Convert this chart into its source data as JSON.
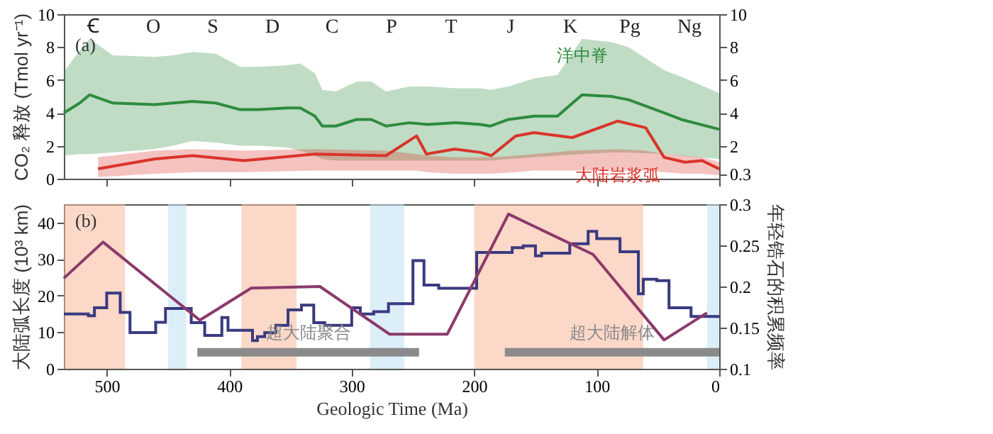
{
  "chart_data": [
    {
      "type": "line",
      "ylabel": "CO₂ 释放 (Tmol yr⁻¹)",
      "title": "(a)",
      "xlim": [
        535,
        0
      ],
      "xticks": [
        500,
        400,
        300,
        200,
        100,
        0
      ],
      "ylim": [
        0,
        10
      ],
      "yticks": [
        0,
        2,
        4,
        6,
        8,
        10
      ],
      "y2lim": [
        0,
        10
      ],
      "y2ticks": [
        0.3,
        2,
        4,
        6,
        8,
        10
      ],
      "tick_labels": "y",
      "grid": false,
      "series": [
        {
          "name": "洋中脊",
          "color": "#2e8b3e",
          "x": [
            535,
            522,
            514,
            495,
            461,
            446,
            430,
            411,
            391,
            376,
            353,
            342,
            330,
            324,
            313,
            296,
            284,
            272,
            253,
            238,
            215,
            195,
            187,
            172,
            151,
            132,
            112,
            88,
            74,
            45,
            31,
            0
          ],
          "values": [
            4.0,
            4.6,
            5.1,
            4.6,
            4.5,
            4.6,
            4.7,
            4.6,
            4.2,
            4.2,
            4.3,
            4.3,
            3.8,
            3.2,
            3.2,
            3.6,
            3.6,
            3.2,
            3.4,
            3.3,
            3.4,
            3.3,
            3.2,
            3.6,
            3.8,
            3.8,
            5.1,
            5.0,
            4.8,
            4.0,
            3.6,
            3.0
          ],
          "upper": [
            6.5,
            7.8,
            8.5,
            7.5,
            7.4,
            7.5,
            7.7,
            7.6,
            6.8,
            6.8,
            6.9,
            7.0,
            6.4,
            5.4,
            5.3,
            5.9,
            5.9,
            5.3,
            5.6,
            5.6,
            5.5,
            5.5,
            5.4,
            5.6,
            6.1,
            6.3,
            8.5,
            8.3,
            8.0,
            6.6,
            6.2,
            5.2
          ],
          "lower": [
            1.4,
            1.5,
            1.5,
            1.6,
            1.8,
            2.0,
            2.3,
            2.2,
            2.0,
            2.0,
            1.9,
            1.7,
            1.4,
            1.2,
            1.1,
            1.1,
            1.1,
            1.1,
            1.1,
            1.1,
            1.1,
            1.1,
            1.1,
            1.2,
            1.3,
            1.4,
            1.5,
            1.6,
            1.6,
            1.5,
            1.4,
            1.2
          ]
        },
        {
          "name": "大陆岩浆弧",
          "color": "#d9342b",
          "x": [
            507,
            461,
            430,
            388,
            330,
            272,
            247,
            239,
            216,
            195,
            186,
            166,
            151,
            120,
            83,
            60,
            45,
            28,
            14,
            0
          ],
          "values": [
            0.6,
            1.2,
            1.4,
            1.1,
            1.5,
            1.4,
            2.6,
            1.5,
            1.8,
            1.6,
            1.4,
            2.6,
            2.8,
            2.5,
            3.5,
            3.1,
            1.3,
            1.0,
            1.1,
            0.6
          ],
          "upper": [
            1.3,
            1.7,
            1.8,
            1.7,
            1.8,
            1.7,
            1.5,
            1.4,
            1.3,
            1.3,
            1.3,
            1.4,
            1.5,
            1.7,
            1.8,
            1.7,
            1.5,
            1.4,
            1.3,
            1.0
          ],
          "lower": [
            0.1,
            0.3,
            0.4,
            0.4,
            0.5,
            0.5,
            0.5,
            0.4,
            0.3,
            0.3,
            0.3,
            0.4,
            0.5,
            0.5,
            0.5,
            0.5,
            0.4,
            0.3,
            0.3,
            0.2
          ]
        }
      ],
      "annotations": [
        "Ꞓ",
        "O",
        "S",
        "D",
        "C",
        "P",
        "T",
        "J",
        "K",
        "Pg",
        "Ng"
      ]
    },
    {
      "type": "step",
      "xlabel": "Geologic Time (Ma)",
      "ylabel": "大陆弧长度 (10³ km)",
      "y2label": "年轻锆石的积累频率",
      "xlim": [
        535,
        0
      ],
      "xticks": [
        500,
        400,
        300,
        200,
        100,
        0
      ],
      "ylim": [
        0,
        45
      ],
      "yticks": [
        0,
        10,
        20,
        30,
        40
      ],
      "y2lim": [
        0.1,
        0.3
      ],
      "y2ticks": [
        0.1,
        0.15,
        0.2,
        0.25,
        0.3
      ],
      "grid": false,
      "bands": [
        {
          "axis": "x",
          "from": 535,
          "to": 485,
          "color": "#f9b89a"
        },
        {
          "axis": "x",
          "from": 450,
          "to": 435,
          "color": "#bfe0f2"
        },
        {
          "axis": "x",
          "from": 390,
          "to": 345,
          "color": "#f9b89a"
        },
        {
          "axis": "x",
          "from": 285,
          "to": 257,
          "color": "#bfe0f2"
        },
        {
          "axis": "x",
          "from": 200,
          "to": 62,
          "color": "#f9b89a"
        },
        {
          "axis": "x",
          "from": 10,
          "to": 0,
          "color": "#bfe0f2"
        }
      ],
      "series": [
        {
          "color": "#3a3a80",
          "type": "step",
          "x": [
            535,
            515,
            510,
            500,
            489,
            481,
            460,
            452,
            431,
            420,
            406,
            401,
            381,
            377,
            371,
            362,
            352,
            341,
            331,
            322,
            300,
            293,
            282,
            270,
            250,
            241,
            229,
            198,
            169,
            160,
            150,
            145,
            122,
            107,
            100,
            81,
            66,
            62,
            51,
            41,
            23,
            0
          ],
          "values": [
            15.0,
            14.5,
            16.7,
            20.7,
            15.4,
            9.9,
            12.7,
            16.5,
            12.6,
            9.1,
            14.0,
            10.5,
            7.7,
            8.8,
            9.9,
            11.9,
            16.1,
            17.4,
            12.6,
            11.9,
            16.7,
            15.0,
            15.6,
            17.8,
            29.6,
            22.9,
            22.0,
            31.8,
            33.1,
            33.6,
            30.9,
            31.6,
            34.2,
            37.6,
            35.6,
            32.0,
            20.5,
            24.5,
            24.1,
            16.7,
            14.3,
            14.3
          ]
        },
        {
          "color": "#8b3a6b",
          "type": "line",
          "axis": "y2",
          "x": [
            535,
            503,
            424,
            382,
            326,
            269,
            222,
            172,
            103,
            45,
            10
          ],
          "values": [
            0.21,
            0.254,
            0.159,
            0.198,
            0.2,
            0.142,
            0.142,
            0.288,
            0.239,
            0.135,
            0.168
          ]
        },
        {
          "name": "超大陆聚合",
          "color": "#8a8a8a",
          "type": "line",
          "x": [
            426,
            245
          ],
          "values": [
            4.5,
            4.5
          ]
        },
        {
          "name": "超大陆解体",
          "color": "#8a8a8a",
          "type": "line",
          "x": [
            175,
            0
          ],
          "values": [
            4.5,
            4.5
          ]
        }
      ],
      "title": "(b)"
    }
  ]
}
